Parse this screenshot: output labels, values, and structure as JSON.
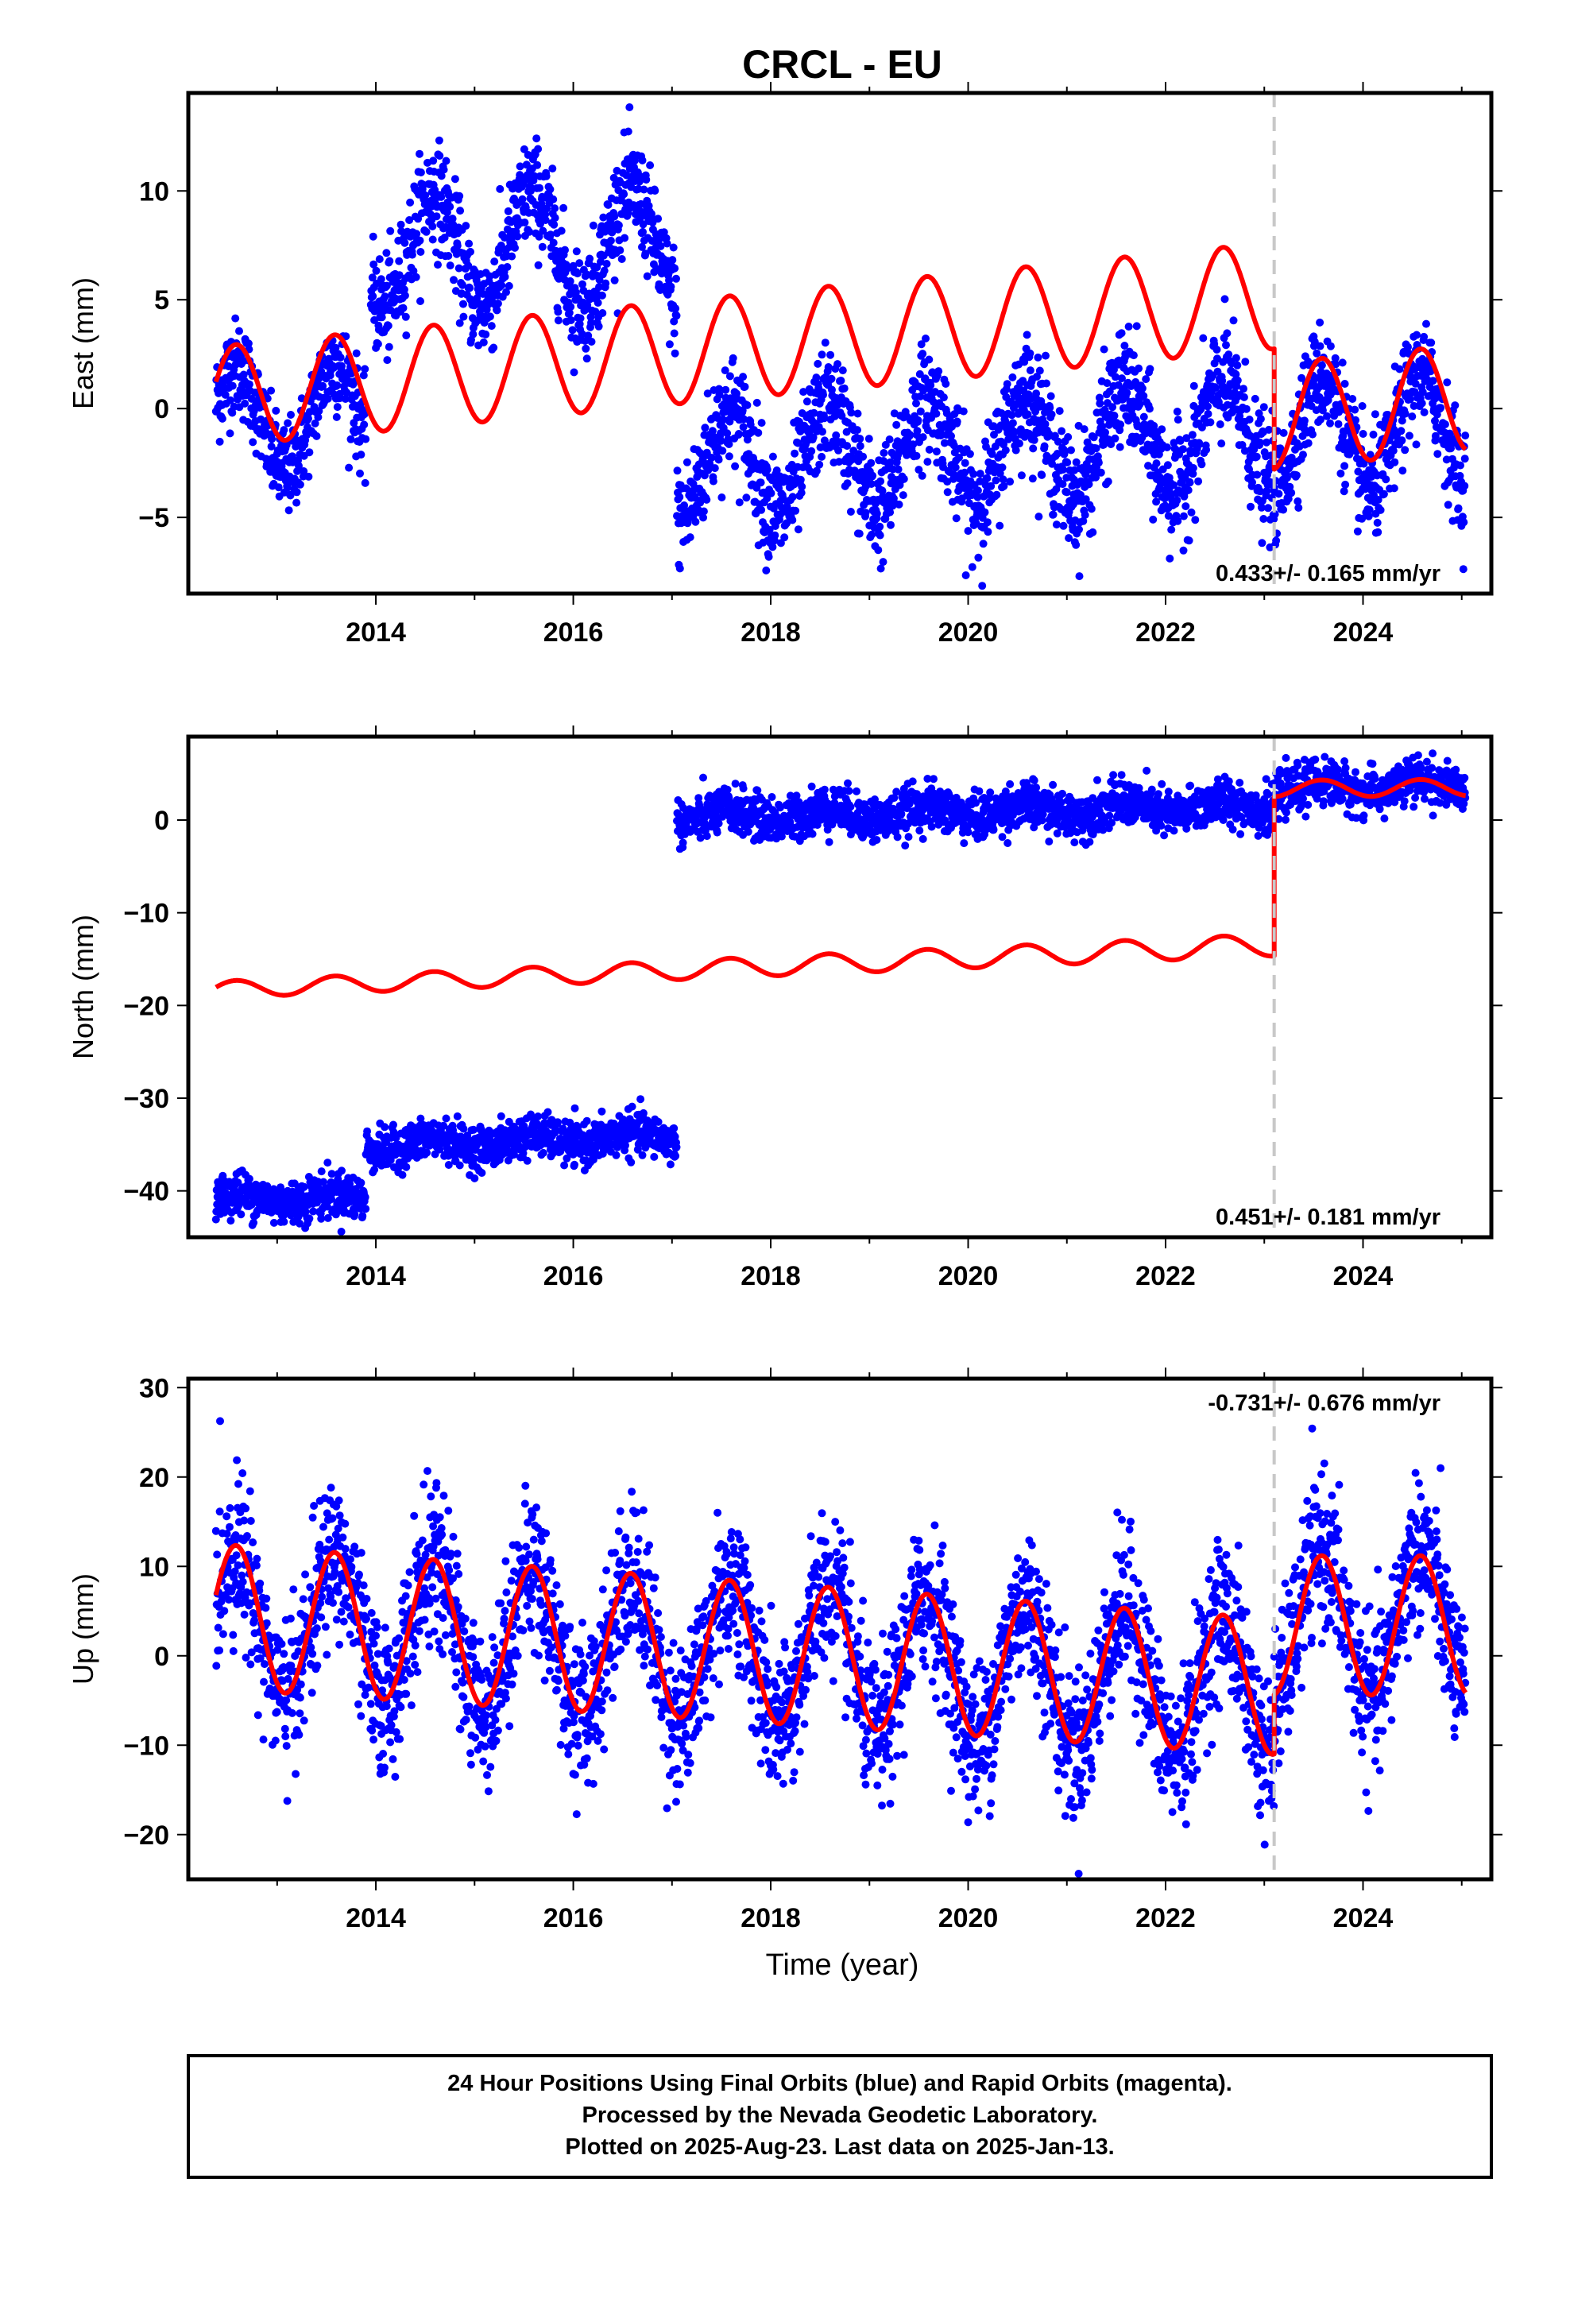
{
  "title": "CRCL - EU",
  "xlabel": "Time (year)",
  "colors": {
    "data": "#0000ff",
    "model": "#ff0000",
    "break": "#c8c8c8",
    "axes": "#000000"
  },
  "chart_data": [
    {
      "type": "scatter",
      "name": "East",
      "ylabel": "East (mm)",
      "xlim": [
        2012.1,
        2025.3
      ],
      "ylim": [
        -8.5,
        14.5
      ],
      "xticks": [
        2014,
        2016,
        2018,
        2020,
        2022,
        2024
      ],
      "yticks": [
        -5,
        0,
        5,
        10
      ],
      "rate_text": "0.433+/- 0.165 mm/yr",
      "rate_position": "bottom-right",
      "break_line": 2023.1,
      "data_segments": [
        {
          "x": [
            2012.38,
            2013.9
          ],
          "offset": -0.5,
          "amp": 2.4,
          "trend": 0.1,
          "noise": 1.1
        },
        {
          "x": [
            2013.95,
            2017.05
          ],
          "offset": 7.2,
          "amp": 2.6,
          "trend": 0.1,
          "noise": 1.2
        },
        {
          "x": [
            2017.05,
            2023.1
          ],
          "offset": -2.6,
          "amp": 2.4,
          "trend": 0.25,
          "noise": 1.3
        },
        {
          "x": [
            2023.1,
            2025.04
          ],
          "offset": -1.2,
          "amp": 2.6,
          "trend": 0.1,
          "noise": 1.2
        }
      ],
      "model_segments": [
        {
          "x": [
            2012.38,
            2023.1
          ],
          "y0": 0.55,
          "trend": 0.433,
          "amp_start": 2.3,
          "amp_end": 2.45,
          "phase": 2012.38,
          "ref": 2012.38
        },
        {
          "x": [
            2023.1,
            2025.04
          ],
          "y0": -0.35,
          "trend": 0.433,
          "amp_start": 2.45,
          "amp_end": 2.45,
          "phase": 2012.38,
          "ref": 2023.1
        }
      ]
    },
    {
      "type": "scatter",
      "name": "North",
      "ylabel": "North (mm)",
      "xlim": [
        2012.1,
        2025.3
      ],
      "ylim": [
        -45,
        9
      ],
      "xticks": [
        2014,
        2016,
        2018,
        2020,
        2022,
        2024
      ],
      "yticks": [
        -40,
        -30,
        -20,
        -10,
        0
      ],
      "rate_text": "0.451+/- 0.181 mm/yr",
      "rate_position": "bottom-right",
      "break_line": 2023.1,
      "data_segments": [
        {
          "x": [
            2012.38,
            2013.9
          ],
          "offset": -40.8,
          "amp": 0.5,
          "trend": 0.0,
          "noise": 1.2
        },
        {
          "x": [
            2013.9,
            2017.05
          ],
          "offset": -35.2,
          "amp": 0.6,
          "trend": 0.35,
          "noise": 1.1
        },
        {
          "x": [
            2017.05,
            2023.1
          ],
          "offset": 0.3,
          "amp": 0.7,
          "trend": 0.2,
          "noise": 1.2
        },
        {
          "x": [
            2023.1,
            2025.04
          ],
          "offset": 3.3,
          "amp": 0.7,
          "trend": 0.2,
          "noise": 1.2
        }
      ],
      "model_segments": [
        {
          "x": [
            2012.38,
            2023.1
          ],
          "y0": -18.3,
          "trend": 0.451,
          "amp_start": 0.9,
          "amp_end": 1.2,
          "phase": 2012.38,
          "ref": 2012.38
        },
        {
          "x": [
            2023.1,
            2025.04
          ],
          "y0": 3.4,
          "trend": 0.05,
          "amp_start": 0.9,
          "amp_end": 0.9,
          "phase": 2012.38,
          "ref": 2023.1
        }
      ]
    },
    {
      "type": "scatter",
      "name": "Up",
      "ylabel": "Up (mm)",
      "xlim": [
        2012.1,
        2025.3
      ],
      "ylim": [
        -25,
        31
      ],
      "xticks": [
        2014,
        2016,
        2018,
        2020,
        2022,
        2024
      ],
      "yticks": [
        -20,
        -10,
        0,
        10,
        20,
        30
      ],
      "rate_text": "-0.731+/- 0.676 mm/yr",
      "rate_position": "top-right",
      "break_line": 2023.1,
      "data_segments": [
        {
          "x": [
            2012.38,
            2023.1
          ],
          "offset": 4.0,
          "amp": 8.0,
          "trend": -0.731,
          "noise": 4.2
        },
        {
          "x": [
            2023.1,
            2025.04
          ],
          "offset": 3.5,
          "amp": 8.5,
          "trend": 0.0,
          "noise": 4.2
        }
      ],
      "model_segments": [
        {
          "x": [
            2012.38,
            2023.1
          ],
          "y0": 4.4,
          "trend": -0.731,
          "amp_start": 8.1,
          "amp_end": 7.6,
          "phase": 2012.38,
          "ref": 2012.38
        },
        {
          "x": [
            2023.1,
            2025.04
          ],
          "y0": 3.4,
          "trend": 0.0,
          "amp_start": 7.8,
          "amp_end": 7.8,
          "phase": 2012.38,
          "ref": 2023.1
        }
      ]
    }
  ],
  "footer": {
    "line1": "24 Hour Positions Using Final Orbits (blue) and Rapid Orbits (magenta).",
    "line2": "Processed by the Nevada Geodetic Laboratory.",
    "line3": "Plotted on 2025-Aug-23. Last data on 2025-Jan-13."
  }
}
